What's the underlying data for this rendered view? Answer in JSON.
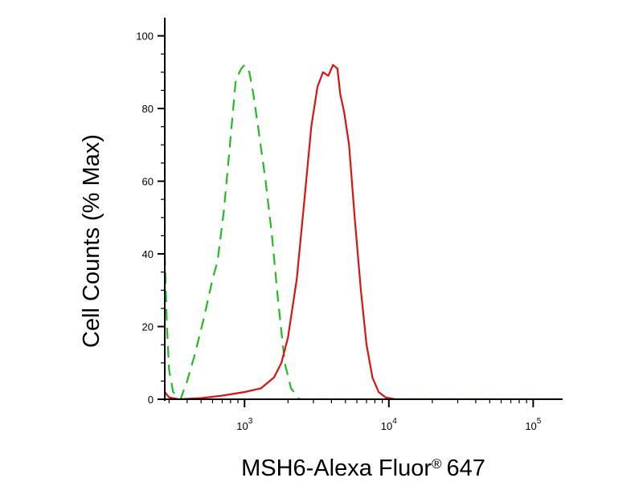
{
  "chart_data": {
    "type": "line",
    "xlabel": "MSH6-Alexa Fluor",
    "xlabel_mark": "®",
    "xlabel_suffix": "647",
    "ylabel": "Cell Counts (% Max)",
    "x_scale": "log",
    "xlim": [
      280,
      160000
    ],
    "ylim": [
      0,
      105
    ],
    "x_ticks": [
      {
        "value": 1000,
        "base": "10",
        "exp": "3"
      },
      {
        "value": 10000,
        "base": "10",
        "exp": "4"
      },
      {
        "value": 100000,
        "base": "10",
        "exp": "5"
      }
    ],
    "y_ticks": [
      0,
      20,
      40,
      60,
      80,
      100
    ],
    "grid": false,
    "series": [
      {
        "style": "dashed",
        "color": "#22bb22",
        "points": [
          [
            280,
            40
          ],
          [
            290,
            20
          ],
          [
            300,
            8
          ],
          [
            320,
            2
          ],
          [
            360,
            0
          ],
          [
            400,
            5
          ],
          [
            450,
            12
          ],
          [
            520,
            22
          ],
          [
            600,
            33
          ],
          [
            650,
            38
          ],
          [
            720,
            52
          ],
          [
            800,
            72
          ],
          [
            870,
            88
          ],
          [
            950,
            91
          ],
          [
            1000,
            92
          ],
          [
            1080,
            90
          ],
          [
            1150,
            84
          ],
          [
            1250,
            74
          ],
          [
            1400,
            60
          ],
          [
            1550,
            45
          ],
          [
            1700,
            28
          ],
          [
            1900,
            10
          ],
          [
            2100,
            3
          ],
          [
            2400,
            0
          ],
          [
            160000,
            0
          ]
        ]
      },
      {
        "style": "solid",
        "color": "#dd1111",
        "points": [
          [
            280,
            2
          ],
          [
            300,
            0.5
          ],
          [
            350,
            0
          ],
          [
            500,
            0.3
          ],
          [
            700,
            1
          ],
          [
            1000,
            2
          ],
          [
            1300,
            3
          ],
          [
            1600,
            6
          ],
          [
            1800,
            10
          ],
          [
            2000,
            17
          ],
          [
            2300,
            33
          ],
          [
            2600,
            55
          ],
          [
            2900,
            75
          ],
          [
            3200,
            86
          ],
          [
            3500,
            90
          ],
          [
            3800,
            89
          ],
          [
            4100,
            92
          ],
          [
            4400,
            91
          ],
          [
            4600,
            84
          ],
          [
            4900,
            79
          ],
          [
            5300,
            70
          ],
          [
            5800,
            50
          ],
          [
            6400,
            30
          ],
          [
            7000,
            15
          ],
          [
            7700,
            6
          ],
          [
            8500,
            2
          ],
          [
            9500,
            0.5
          ],
          [
            11000,
            0
          ],
          [
            160000,
            0
          ]
        ]
      }
    ]
  }
}
